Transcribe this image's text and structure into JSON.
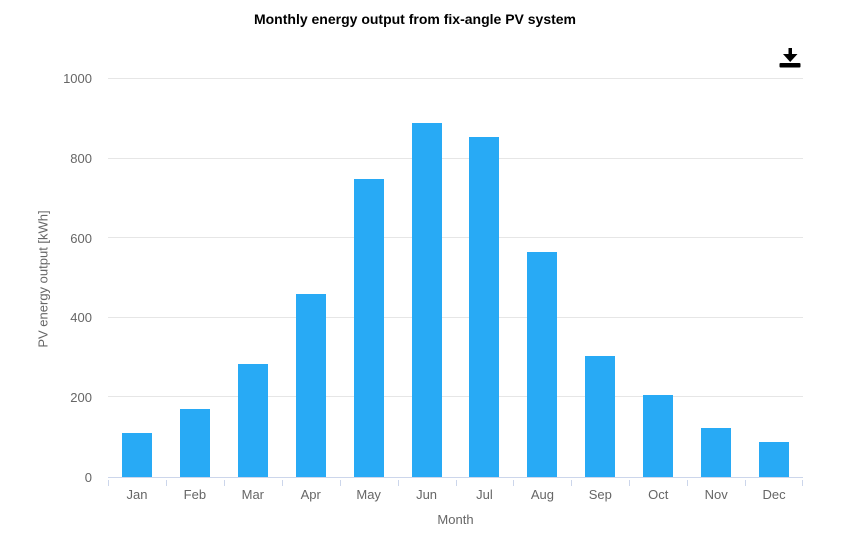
{
  "header": {
    "title": "Monthly energy output from fix-angle PV system",
    "download_icon": "download-icon"
  },
  "chart_data": {
    "type": "bar",
    "title": "Monthly energy output from fix-angle PV system",
    "categories": [
      "Jan",
      "Feb",
      "Mar",
      "Apr",
      "May",
      "Jun",
      "Jul",
      "Aug",
      "Sep",
      "Oct",
      "Nov",
      "Dec"
    ],
    "values": [
      110,
      170,
      285,
      460,
      750,
      890,
      855,
      565,
      305,
      205,
      123,
      88
    ],
    "xlabel": "Month",
    "ylabel": "PV energy output [kWh]",
    "ylim": [
      0,
      1000
    ],
    "yticks": [
      0,
      200,
      400,
      600,
      800,
      1000
    ],
    "grid": "horizontal-only",
    "legend": "none",
    "colors": {
      "bar": "#28AAF5",
      "gridline": "#E6E6E6",
      "axis_line": "#CCD6EB",
      "tick_labels": "#666666",
      "title": "#000000",
      "download_icon": "#000000",
      "background": "#FFFFFF"
    }
  }
}
